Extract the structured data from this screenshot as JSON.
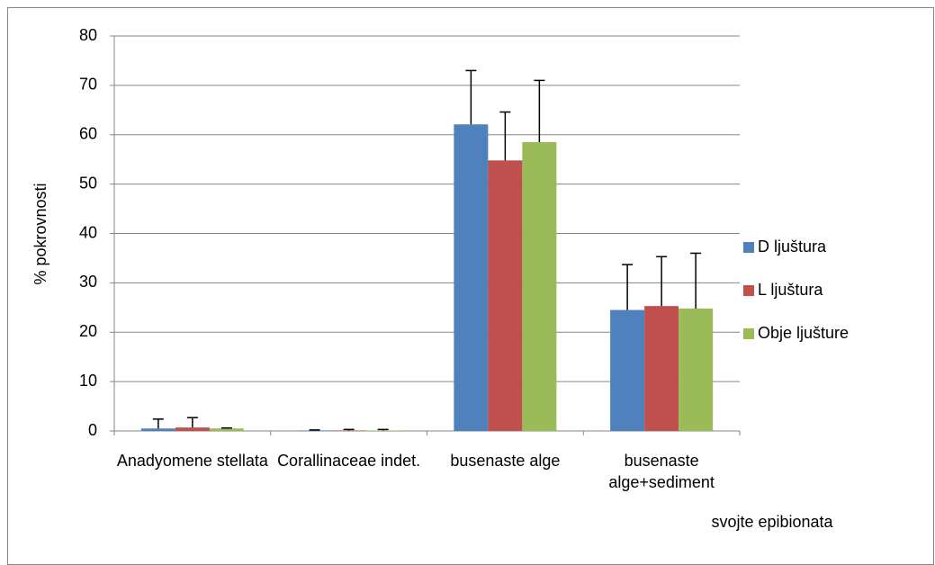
{
  "chart_data": {
    "type": "bar",
    "y_label": "% pokrovnosti",
    "x_label": "svojte epibionata",
    "categories": [
      "Anadyomene stellata",
      "Corallinaceae indet.",
      "busenaste alge",
      "busenaste alge+sediment"
    ],
    "series": [
      {
        "name": "D ljuštura",
        "color": "#4f81bd",
        "values": [
          0.5,
          0.1,
          62.1,
          24.5
        ],
        "errors": [
          1.9,
          0.1,
          10.9,
          9.2
        ]
      },
      {
        "name": "L ljuštura",
        "color": "#c0504d",
        "values": [
          0.7,
          0.1,
          54.8,
          25.3
        ],
        "errors": [
          2.0,
          0.2,
          9.8,
          10.0
        ]
      },
      {
        "name": "Obje ljušture",
        "color": "#9bbb59",
        "values": [
          0.5,
          0.1,
          58.5,
          24.8
        ],
        "errors": [
          0.1,
          0.2,
          12.5,
          11.2
        ]
      }
    ],
    "ylim": [
      0,
      80
    ],
    "yticks": [
      0,
      10,
      20,
      30,
      40,
      50,
      60,
      70,
      80
    ],
    "grid": true,
    "legend": "right"
  }
}
